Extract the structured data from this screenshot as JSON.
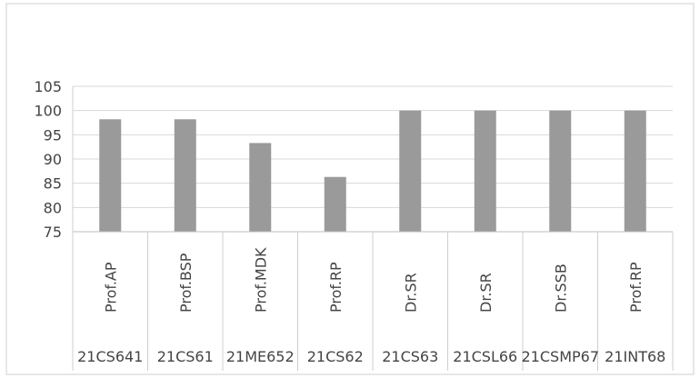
{
  "chart_data": {
    "type": "bar",
    "title": "",
    "xlabel": "",
    "ylabel": "",
    "ylim": [
      75,
      105
    ],
    "yticks": [
      75,
      80,
      85,
      90,
      95,
      100,
      105
    ],
    "grid": true,
    "legend": "none",
    "bar_color": "#9a9a9a",
    "categories": [
      {
        "teacher": "Prof.AP",
        "course": "21CS641"
      },
      {
        "teacher": "Prof.BSP",
        "course": "21CS61"
      },
      {
        "teacher": "Prof.MDK",
        "course": "21ME652"
      },
      {
        "teacher": "Prof.RP",
        "course": "21CS62"
      },
      {
        "teacher": "Dr.SR",
        "course": "21CS63"
      },
      {
        "teacher": "Dr.SR",
        "course": "21CSL66"
      },
      {
        "teacher": "Dr.SSB",
        "course": "21CSMP67"
      },
      {
        "teacher": "Prof.RP",
        "course": "21INT68"
      }
    ],
    "values": [
      98.2,
      98.2,
      93.3,
      86.3,
      100,
      100,
      100,
      100
    ]
  }
}
